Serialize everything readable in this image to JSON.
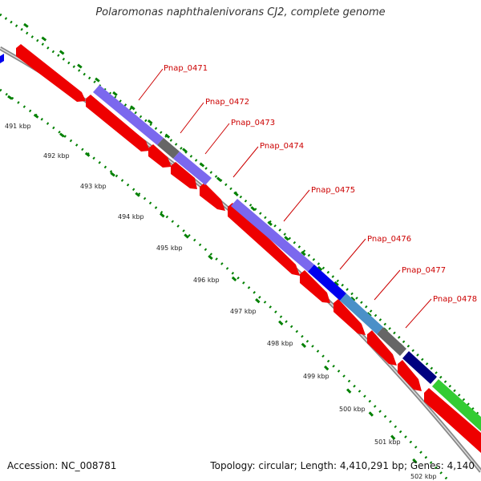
{
  "title": "Polaromonas naphthalenivorans CJ2, complete genome",
  "footer": {
    "accession": "Accession: NC_008781",
    "topology": "Topology: circular; Length: 4,410,291 bp; Genes: 4,140"
  },
  "colors": {
    "forward_cds": "#7b68ee",
    "reverse_cds": "#ee0000",
    "backbone": "#888888",
    "gc_dots": "#008000",
    "label": "#cc0000",
    "dark_grey_feature": "#666666",
    "blue_feature": "#0000ee",
    "steel_blue_feature": "#4a90c8",
    "navy_feature": "#000080",
    "green_feature": "#33cc33"
  },
  "gene_labels": [
    {
      "name": "Pnap_0471",
      "index": 0
    },
    {
      "name": "Pnap_0472",
      "index": 1
    },
    {
      "name": "Pnap_0473",
      "index": 2
    },
    {
      "name": "Pnap_0474",
      "index": 3
    },
    {
      "name": "Pnap_0475",
      "index": 4
    },
    {
      "name": "Pnap_0476",
      "index": 5
    },
    {
      "name": "Pnap_0477",
      "index": 6
    },
    {
      "name": "Pnap_0478",
      "index": 7
    }
  ],
  "tick_labels": [
    "491 kbp",
    "492 kbp",
    "493 kbp",
    "494 kbp",
    "495 kbp",
    "496 kbp",
    "497 kbp",
    "498 kbp",
    "499 kbp",
    "500 kbp",
    "501 kbp",
    "502 kbp"
  ]
}
